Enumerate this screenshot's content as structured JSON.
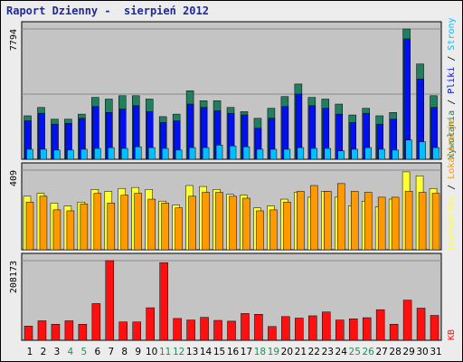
{
  "title": "Raport Dzienny -  sierpień 2012",
  "colors": {
    "visits": "#1f7f5f",
    "pages": "#0010ee",
    "hits": "#00c0ff",
    "unique": "#ffff33",
    "geo": "#ff9900",
    "kb": "#ff1010",
    "weekend_tick": "#2a8a5a",
    "weekday_tick": "#000000",
    "panel_bg": "#c4c4c4",
    "frame_bg": "#ececec"
  },
  "chart_data": [
    {
      "type": "bar",
      "panel": "top",
      "ytick_label": "7794",
      "ylim": [
        0,
        7794
      ],
      "legend": [
        {
          "text": "Wywołania",
          "color": "#1f7f5f"
        },
        {
          "text": " / ",
          "color": "#000000"
        },
        {
          "text": "Pliki",
          "color": "#0010ee"
        },
        {
          "text": " / ",
          "color": "#000000"
        },
        {
          "text": "Strony",
          "color": "#00c0ff"
        }
      ],
      "categories": [
        "1",
        "2",
        "3",
        "4",
        "5",
        "6",
        "7",
        "8",
        "9",
        "10",
        "11",
        "12",
        "13",
        "14",
        "15",
        "16",
        "17",
        "18",
        "19",
        "20",
        "21",
        "22",
        "23",
        "24",
        "25",
        "26",
        "27",
        "28",
        "29",
        "30",
        "31"
      ],
      "series": [
        {
          "name": "Wywołania",
          "values": [
            2600,
            3100,
            2400,
            2400,
            2700,
            3700,
            3600,
            3800,
            3800,
            3600,
            2550,
            2700,
            4100,
            3500,
            3500,
            3100,
            2850,
            2450,
            3050,
            3750,
            4500,
            3700,
            3600,
            3300,
            2650,
            3050,
            2600,
            2800,
            7794,
            5700,
            3800
          ]
        },
        {
          "name": "Pliki",
          "values": [
            2300,
            2750,
            2100,
            2150,
            2450,
            3150,
            2800,
            3000,
            3200,
            2850,
            2200,
            2300,
            3300,
            3100,
            2900,
            2750,
            2650,
            1850,
            2450,
            3150,
            3900,
            3200,
            3050,
            2700,
            2200,
            2750,
            2100,
            2400,
            7200,
            4800,
            3100
          ]
        },
        {
          "name": "Strony",
          "values": [
            600,
            600,
            550,
            550,
            600,
            650,
            700,
            650,
            750,
            700,
            650,
            550,
            700,
            700,
            850,
            800,
            750,
            600,
            600,
            600,
            700,
            650,
            650,
            500,
            600,
            700,
            600,
            550,
            1150,
            1050,
            700
          ]
        }
      ]
    },
    {
      "type": "bar",
      "panel": "middle",
      "ytick_label": "409",
      "ylim": [
        0,
        409
      ],
      "legend": [
        {
          "text": "Odwiedziny",
          "color": "#ffff33"
        },
        {
          "text": " / ",
          "color": "#000000"
        },
        {
          "text": "Lokalizacje",
          "color": "#ff9900"
        }
      ],
      "categories": [
        "1",
        "2",
        "3",
        "4",
        "5",
        "6",
        "7",
        "8",
        "9",
        "10",
        "11",
        "12",
        "13",
        "14",
        "15",
        "16",
        "17",
        "18",
        "19",
        "20",
        "21",
        "22",
        "23",
        "24",
        "25",
        "26",
        "27",
        "28",
        "29",
        "30",
        "31"
      ],
      "series": [
        {
          "name": "Odwiedziny",
          "values": [
            275,
            290,
            240,
            225,
            245,
            310,
            300,
            315,
            320,
            310,
            250,
            230,
            330,
            325,
            310,
            285,
            280,
            215,
            225,
            260,
            295,
            270,
            300,
            270,
            225,
            250,
            220,
            260,
            400,
            380,
            315
          ]
        },
        {
          "name": "Lokalizacje",
          "values": [
            245,
            275,
            205,
            200,
            235,
            290,
            240,
            280,
            290,
            260,
            240,
            215,
            275,
            295,
            295,
            275,
            265,
            200,
            205,
            245,
            300,
            330,
            300,
            340,
            300,
            295,
            270,
            270,
            300,
            295,
            290
          ]
        }
      ]
    },
    {
      "type": "bar",
      "panel": "bottom",
      "ytick_label": "208173",
      "ylim": [
        0,
        208173
      ],
      "legend": [
        {
          "text": "KB",
          "color": "#ff1010"
        }
      ],
      "categories": [
        "1",
        "2",
        "3",
        "4",
        "5",
        "6",
        "7",
        "8",
        "9",
        "10",
        "11",
        "12",
        "13",
        "14",
        "15",
        "16",
        "17",
        "18",
        "19",
        "20",
        "21",
        "22",
        "23",
        "24",
        "25",
        "26",
        "27",
        "28",
        "29",
        "30",
        "31"
      ],
      "series": [
        {
          "name": "KB",
          "values": [
            37000,
            51000,
            42000,
            51000,
            42000,
            96000,
            208173,
            48000,
            48000,
            85000,
            203000,
            57000,
            53000,
            60000,
            52000,
            50000,
            70000,
            68000,
            36000,
            62000,
            58000,
            64000,
            74000,
            53000,
            56000,
            59000,
            80000,
            42000,
            105000,
            84000,
            65000
          ]
        }
      ]
    }
  ],
  "x_axis": {
    "labels": [
      "1",
      "2",
      "3",
      "4",
      "5",
      "6",
      "7",
      "8",
      "9",
      "10",
      "11",
      "12",
      "13",
      "14",
      "15",
      "16",
      "17",
      "18",
      "19",
      "20",
      "21",
      "22",
      "23",
      "24",
      "25",
      "26",
      "27",
      "28",
      "29",
      "30",
      "31"
    ],
    "weekend": [
      false,
      false,
      false,
      true,
      true,
      false,
      false,
      false,
      false,
      false,
      true,
      true,
      false,
      false,
      false,
      false,
      false,
      true,
      true,
      false,
      false,
      false,
      false,
      false,
      true,
      true,
      false,
      false,
      false,
      false,
      false
    ]
  }
}
